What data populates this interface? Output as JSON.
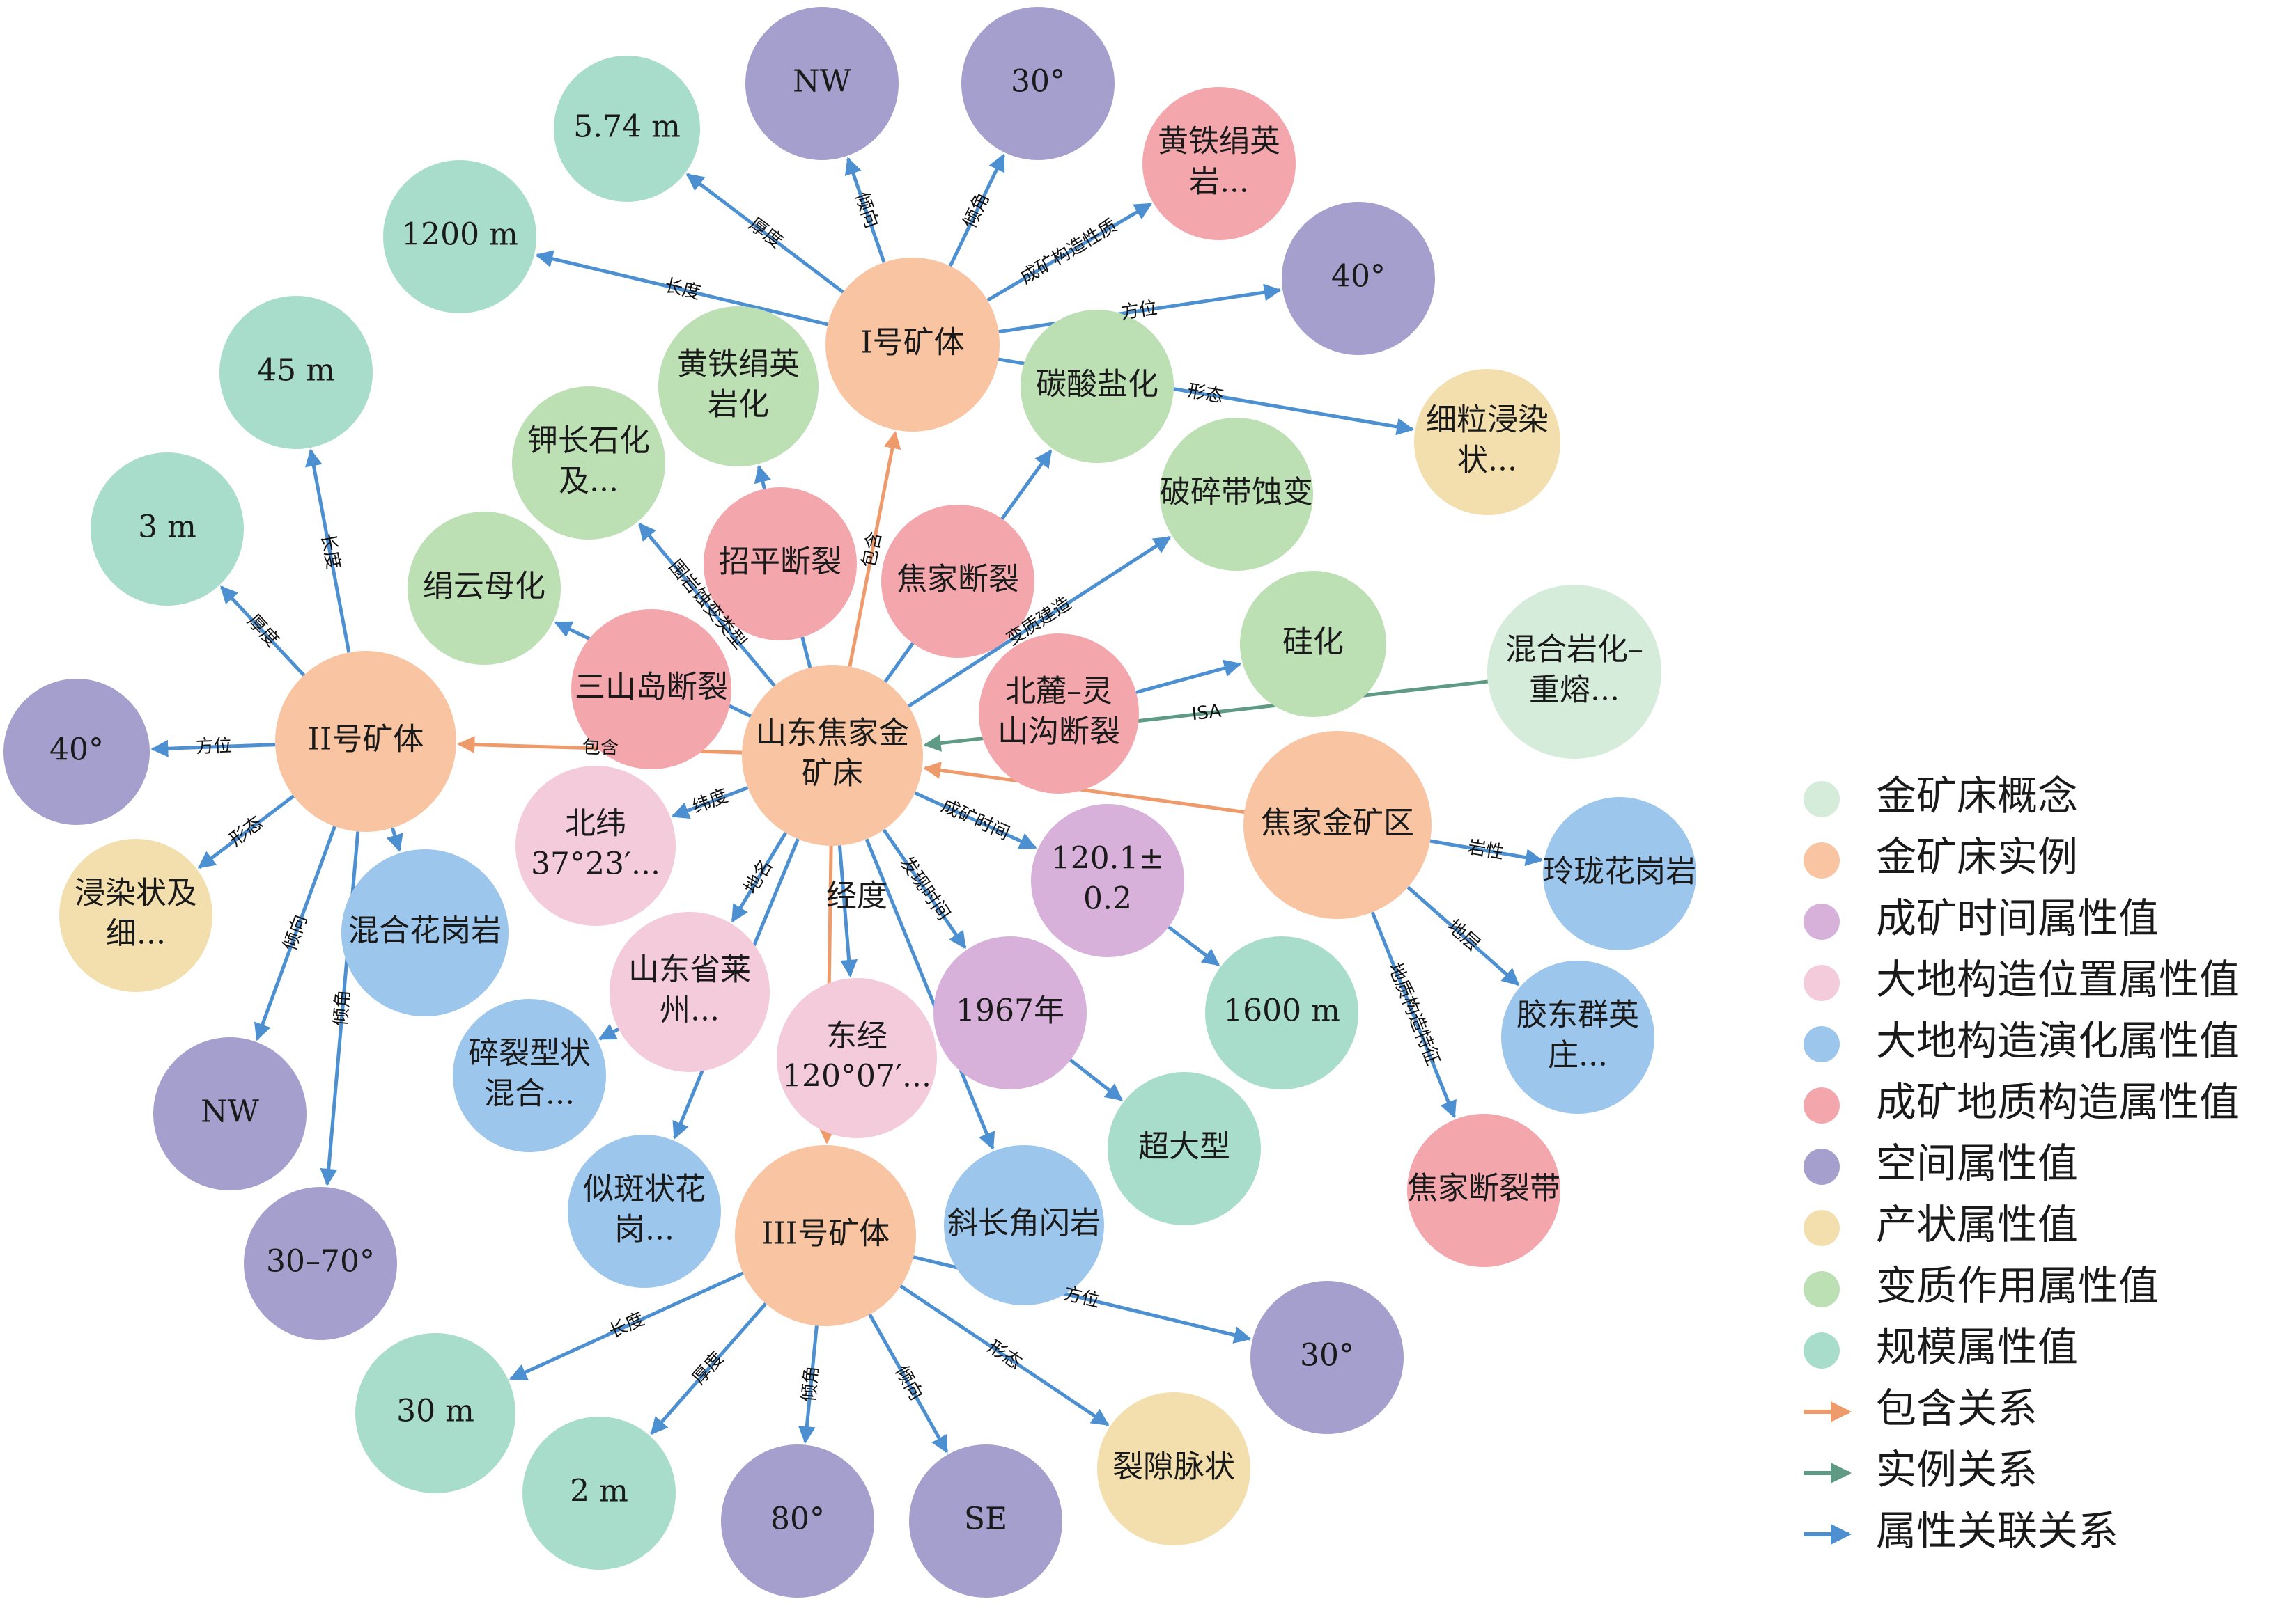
{
  "colors": {
    "concept": "#d6ecdb",
    "instance": "#f8c4a2",
    "time": "#d8b1da",
    "location": "#f4cbdb",
    "evolution": "#9dc6ec",
    "structure": "#f3a7ad",
    "spatial": "#a59fce",
    "occurrence": "#f3dfae",
    "metamorphism": "#bcdfb4",
    "scale": "#a9ddcb",
    "edge_contain": "#ef9a6a",
    "edge_instance": "#5e9a84",
    "edge_attr": "#4d90d2"
  },
  "nodes": [
    {
      "id": "center",
      "lines": [
        "山东焦家金",
        "矿床"
      ],
      "cat": "instance"
    },
    {
      "id": "b1",
      "lines": [
        "I号矿体"
      ],
      "cat": "instance"
    },
    {
      "id": "b2",
      "lines": [
        "II号矿体"
      ],
      "cat": "instance"
    },
    {
      "id": "b3",
      "lines": [
        "III号矿体"
      ],
      "cat": "instance"
    },
    {
      "id": "jiaojia_area",
      "lines": [
        "焦家金矿区"
      ],
      "cat": "instance"
    },
    {
      "id": "hunhe_concept",
      "lines": [
        "混合岩化–",
        "重熔..."
      ],
      "cat": "concept"
    },
    {
      "id": "b1_thick",
      "lines": [
        "5.74 m"
      ],
      "cat": "scale"
    },
    {
      "id": "b1_dir",
      "lines": [
        "NW"
      ],
      "cat": "spatial"
    },
    {
      "id": "b1_dip",
      "lines": [
        "30°"
      ],
      "cat": "spatial"
    },
    {
      "id": "b1_nature",
      "lines": [
        "黄铁绢英",
        "岩..."
      ],
      "cat": "structure"
    },
    {
      "id": "b1_len",
      "lines": [
        "1200 m"
      ],
      "cat": "scale"
    },
    {
      "id": "b1_az",
      "lines": [
        "40°"
      ],
      "cat": "spatial"
    },
    {
      "id": "b1_form",
      "lines": [
        "细粒浸染",
        "状..."
      ],
      "cat": "occurrence"
    },
    {
      "id": "pyrite_alt",
      "lines": [
        "黄铁绢英",
        "岩化"
      ],
      "cat": "metamorphism"
    },
    {
      "id": "carbonate",
      "lines": [
        "碳酸盐化"
      ],
      "cat": "metamorphism"
    },
    {
      "id": "kfeld",
      "lines": [
        "钾长石化",
        "及..."
      ],
      "cat": "metamorphism"
    },
    {
      "id": "breccia",
      "lines": [
        "破碎带蚀变"
      ],
      "cat": "metamorphism"
    },
    {
      "id": "sericite",
      "lines": [
        "绢云母化"
      ],
      "cat": "metamorphism"
    },
    {
      "id": "silica",
      "lines": [
        "硅化"
      ],
      "cat": "metamorphism"
    },
    {
      "id": "zhaoping",
      "lines": [
        "招平断裂"
      ],
      "cat": "structure"
    },
    {
      "id": "jiaojia_fault",
      "lines": [
        "焦家断裂"
      ],
      "cat": "structure"
    },
    {
      "id": "sanshan",
      "lines": [
        "三山岛断裂"
      ],
      "cat": "structure"
    },
    {
      "id": "beilu",
      "lines": [
        "北麓–灵",
        "山沟断裂"
      ],
      "cat": "structure"
    },
    {
      "id": "jiaojia_belt",
      "lines": [
        "焦家断裂带"
      ],
      "cat": "structure"
    },
    {
      "id": "b2_len",
      "lines": [
        "45 m"
      ],
      "cat": "scale"
    },
    {
      "id": "b2_thick",
      "lines": [
        "3 m"
      ],
      "cat": "scale"
    },
    {
      "id": "b2_az",
      "lines": [
        "40°"
      ],
      "cat": "spatial"
    },
    {
      "id": "b2_form",
      "lines": [
        "浸染状及",
        "细..."
      ],
      "cat": "occurrence"
    },
    {
      "id": "b2_dir",
      "lines": [
        "NW"
      ],
      "cat": "spatial"
    },
    {
      "id": "b2_dip",
      "lines": [
        "30–70°"
      ],
      "cat": "spatial"
    },
    {
      "id": "lat",
      "lines": [
        "北纬",
        "37°23′..."
      ],
      "cat": "location"
    },
    {
      "id": "place",
      "lines": [
        "山东省莱",
        "州..."
      ],
      "cat": "location"
    },
    {
      "id": "lon",
      "lines": [
        "东经",
        "120°07′..."
      ],
      "cat": "location"
    },
    {
      "id": "age",
      "lines": [
        "120.1±",
        "0.2"
      ],
      "cat": "time"
    },
    {
      "id": "year",
      "lines": [
        "1967年"
      ],
      "cat": "time"
    },
    {
      "id": "granite_mix",
      "lines": [
        "混合花岗岩"
      ],
      "cat": "evolution"
    },
    {
      "id": "cataclastic",
      "lines": [
        "碎裂型状",
        "混合..."
      ],
      "cat": "evolution"
    },
    {
      "id": "porphyritic",
      "lines": [
        "似斑状花",
        "岗..."
      ],
      "cat": "evolution"
    },
    {
      "id": "plagio",
      "lines": [
        "斜长角闪岩"
      ],
      "cat": "evolution"
    },
    {
      "id": "linglong",
      "lines": [
        "玲珑花岗岩"
      ],
      "cat": "evolution"
    },
    {
      "id": "jiaodong",
      "lines": [
        "胶东群英",
        "庄..."
      ],
      "cat": "evolution"
    },
    {
      "id": "area_1600",
      "lines": [
        "1600 m"
      ],
      "cat": "scale"
    },
    {
      "id": "superlarge",
      "lines": [
        "超大型"
      ],
      "cat": "scale"
    },
    {
      "id": "b3_len",
      "lines": [
        "30 m"
      ],
      "cat": "scale"
    },
    {
      "id": "b3_thick",
      "lines": [
        "2 m"
      ],
      "cat": "scale"
    },
    {
      "id": "b3_dip",
      "lines": [
        "80°"
      ],
      "cat": "spatial"
    },
    {
      "id": "b3_dir",
      "lines": [
        "SE"
      ],
      "cat": "spatial"
    },
    {
      "id": "b3_form",
      "lines": [
        "裂隙脉状"
      ],
      "cat": "occurrence"
    },
    {
      "id": "b3_az",
      "lines": [
        "30°"
      ],
      "cat": "spatial"
    }
  ],
  "edges": [
    {
      "from": "center",
      "to": "b1",
      "label": "包含",
      "type": "contain"
    },
    {
      "from": "center",
      "to": "b2",
      "label": "包含",
      "type": "contain"
    },
    {
      "from": "center",
      "to": "b3",
      "label": "",
      "type": "contain"
    },
    {
      "from": "jiaojia_area",
      "to": "center",
      "label": "",
      "type": "contain"
    },
    {
      "from": "hunhe_concept",
      "to": "center",
      "label": "ISA",
      "type": "instance"
    },
    {
      "from": "b1",
      "to": "b1_thick",
      "label": "厚度",
      "type": "attr"
    },
    {
      "from": "b1",
      "to": "b1_dir",
      "label": "倾向",
      "type": "attr"
    },
    {
      "from": "b1",
      "to": "b1_dip",
      "label": "倾角",
      "type": "attr"
    },
    {
      "from": "b1",
      "to": "b1_nature",
      "label": "成矿构造性质",
      "type": "attr"
    },
    {
      "from": "b1",
      "to": "b1_len",
      "label": "长度",
      "type": "attr"
    },
    {
      "from": "b1",
      "to": "b1_az",
      "label": "方位",
      "type": "attr"
    },
    {
      "from": "b1",
      "to": "b1_form",
      "label": "形态",
      "type": "attr"
    },
    {
      "from": "center",
      "to": "pyrite_alt",
      "label": "",
      "type": "attr"
    },
    {
      "from": "center",
      "to": "kfeld",
      "label": "围岩蚀变类型",
      "type": "attr"
    },
    {
      "from": "center",
      "to": "carbonate",
      "label": "",
      "type": "attr"
    },
    {
      "from": "center",
      "to": "breccia",
      "label": "变质建造",
      "type": "attr"
    },
    {
      "from": "center",
      "to": "sericite",
      "label": "",
      "type": "attr"
    },
    {
      "from": "beilu",
      "to": "silica",
      "label": "",
      "type": "attr"
    },
    {
      "from": "b2",
      "to": "b2_len",
      "label": "长度",
      "type": "attr"
    },
    {
      "from": "b2",
      "to": "b2_thick",
      "label": "厚度",
      "type": "attr"
    },
    {
      "from": "b2",
      "to": "b2_az",
      "label": "方位",
      "type": "attr"
    },
    {
      "from": "b2",
      "to": "b2_form",
      "label": "形态",
      "type": "attr"
    },
    {
      "from": "b2",
      "to": "b2_dir",
      "label": "倾向",
      "type": "attr"
    },
    {
      "from": "b2",
      "to": "b2_dip",
      "label": "倾角",
      "type": "attr"
    },
    {
      "from": "b2",
      "to": "granite_mix",
      "label": "",
      "type": "attr"
    },
    {
      "from": "center",
      "to": "lat",
      "label": "纬度",
      "type": "attr"
    },
    {
      "from": "center",
      "to": "place",
      "label": "地名",
      "type": "attr"
    },
    {
      "from": "center",
      "to": "lon",
      "label": "",
      "type": "attr"
    },
    {
      "from": "center",
      "to": "age",
      "label": "成矿时间",
      "type": "attr"
    },
    {
      "from": "center",
      "to": "year",
      "label": "发现时间",
      "type": "attr"
    },
    {
      "from": "center",
      "to": "plagio",
      "label": "",
      "type": "attr"
    },
    {
      "from": "center",
      "to": "porphyritic",
      "label": "",
      "type": "attr"
    },
    {
      "from": "place",
      "to": "cataclastic",
      "label": "",
      "type": "attr"
    },
    {
      "from": "age",
      "to": "area_1600",
      "label": "",
      "type": "attr"
    },
    {
      "from": "year",
      "to": "superlarge",
      "label": "",
      "type": "attr"
    },
    {
      "from": "jiaojia_area",
      "to": "linglong",
      "label": "岩性",
      "type": "attr"
    },
    {
      "from": "jiaojia_area",
      "to": "jiaodong",
      "label": "地层",
      "type": "attr"
    },
    {
      "from": "jiaojia_area",
      "to": "jiaojia_belt",
      "label": "地质构造特征",
      "type": "attr"
    },
    {
      "from": "b3",
      "to": "b3_len",
      "label": "长度",
      "type": "attr"
    },
    {
      "from": "b3",
      "to": "b3_thick",
      "label": "厚度",
      "type": "attr"
    },
    {
      "from": "b3",
      "to": "b3_dip",
      "label": "倾角",
      "type": "attr"
    },
    {
      "from": "b3",
      "to": "b3_dir",
      "label": "倾向",
      "type": "attr"
    },
    {
      "from": "b3",
      "to": "b3_form",
      "label": "形态",
      "type": "attr"
    },
    {
      "from": "b3",
      "to": "b3_az",
      "label": "方位",
      "type": "attr"
    }
  ],
  "floating_labels": [
    {
      "id": "lon_label",
      "text": "经度"
    }
  ],
  "legend": {
    "nodes": [
      {
        "cat": "concept",
        "label": "金矿床概念"
      },
      {
        "cat": "instance",
        "label": "金矿床实例"
      },
      {
        "cat": "time",
        "label": "成矿时间属性值"
      },
      {
        "cat": "location",
        "label": "大地构造位置属性值"
      },
      {
        "cat": "evolution",
        "label": "大地构造演化属性值"
      },
      {
        "cat": "structure",
        "label": "成矿地质构造属性值"
      },
      {
        "cat": "spatial",
        "label": "空间属性值"
      },
      {
        "cat": "occurrence",
        "label": "产状属性值"
      },
      {
        "cat": "metamorphism",
        "label": "变质作用属性值"
      },
      {
        "cat": "scale",
        "label": "规模属性值"
      }
    ],
    "edges": [
      {
        "type": "contain",
        "label": "包含关系"
      },
      {
        "type": "instance",
        "label": "实例关系"
      },
      {
        "type": "attr",
        "label": "属性关联关系"
      }
    ]
  }
}
